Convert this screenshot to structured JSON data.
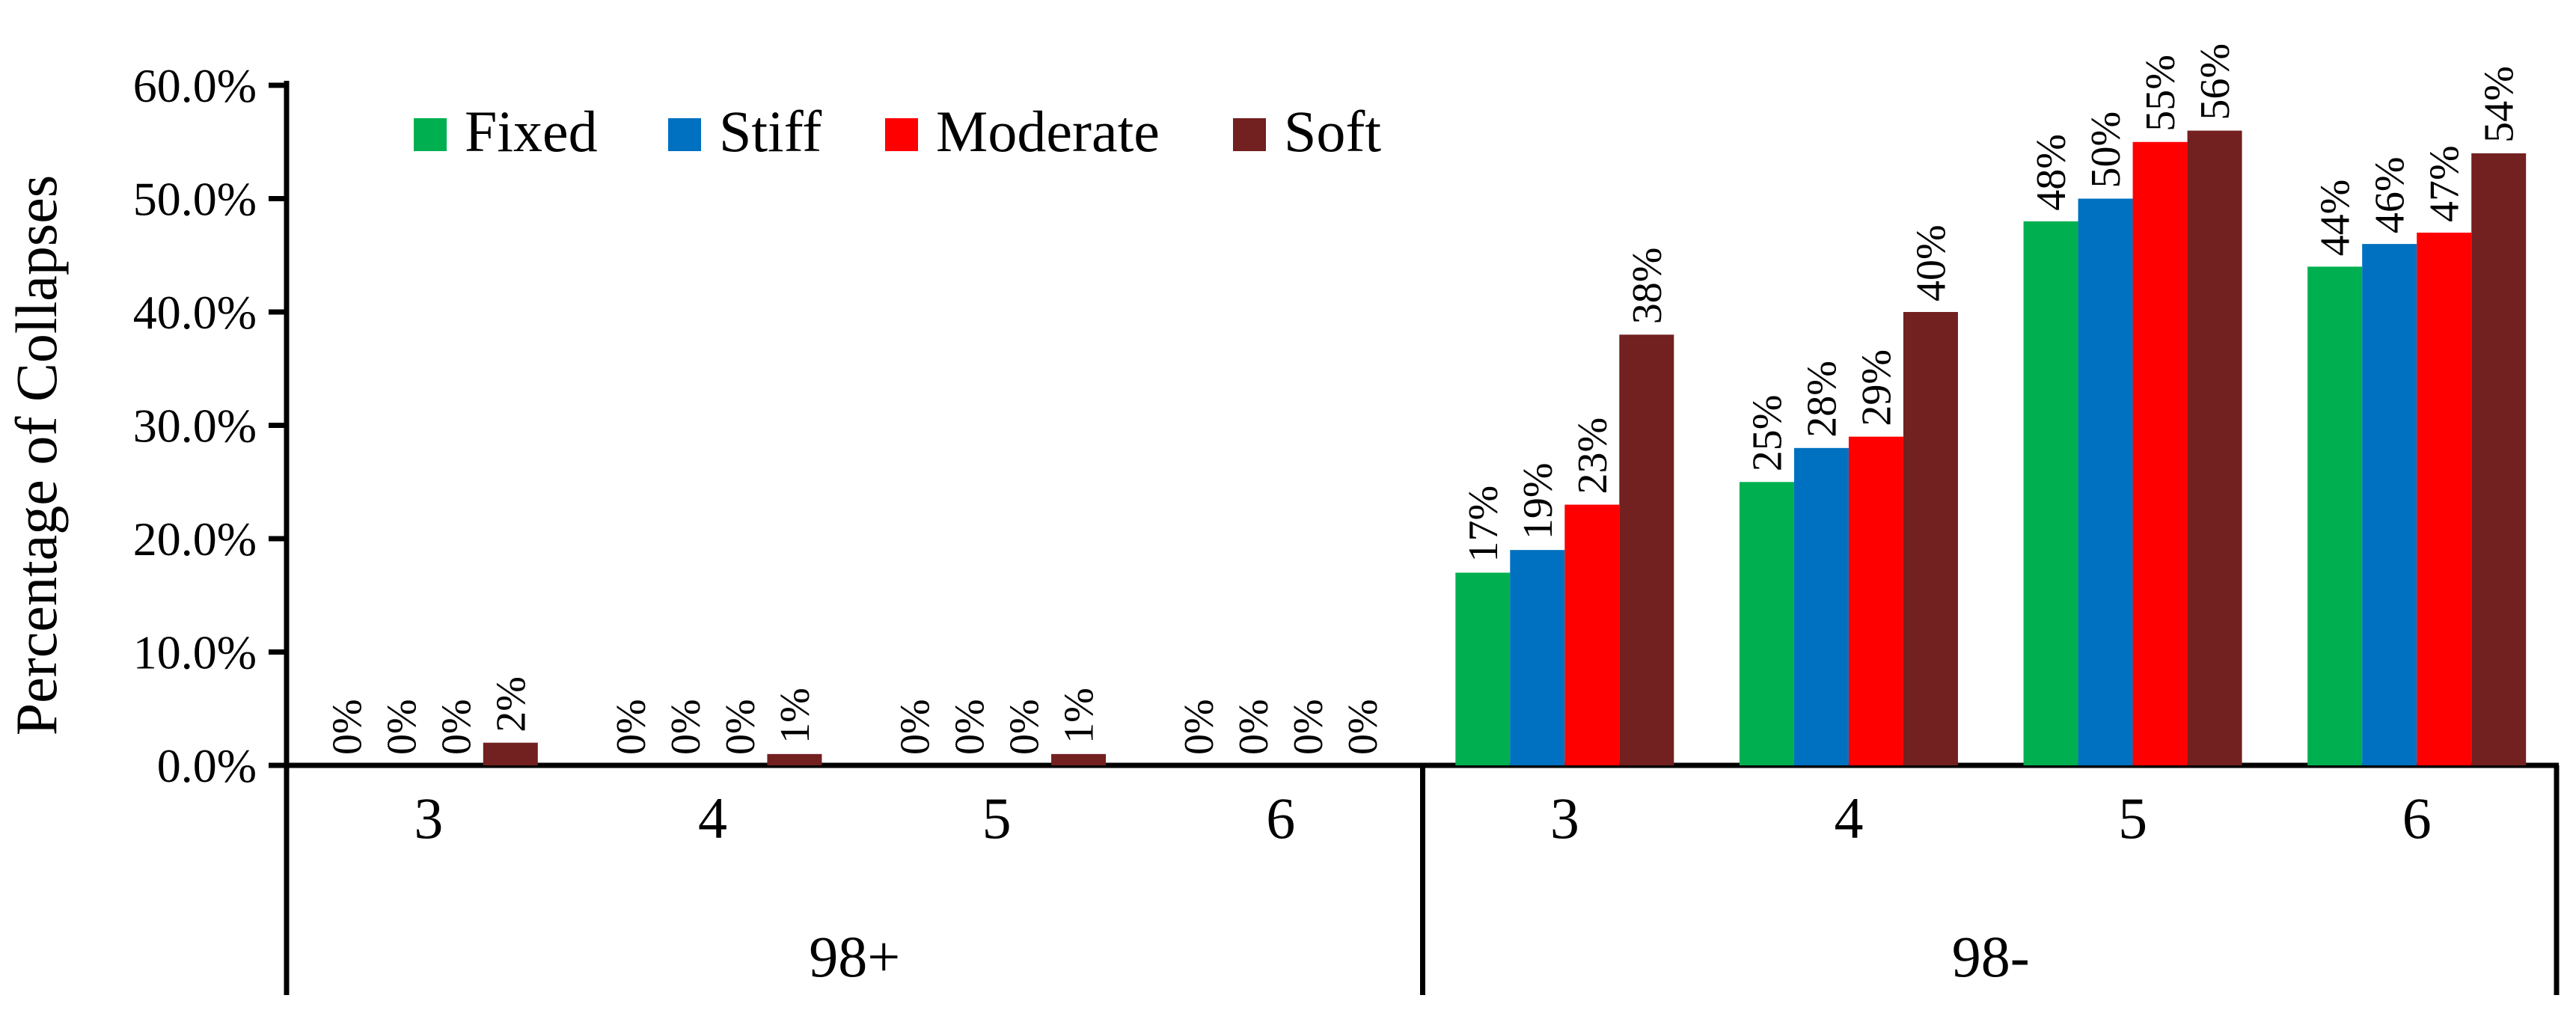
{
  "chart_data": {
    "type": "bar",
    "title": "",
    "xlabel": "",
    "ylabel": "Percentage of Collapses",
    "ylim": [
      0,
      0.6
    ],
    "yticks": [
      0.0,
      0.1,
      0.2,
      0.3,
      0.4,
      0.5,
      0.6
    ],
    "ytick_labels": [
      "0.0%",
      "10.0%",
      "20.0%",
      "30.0%",
      "40.0%",
      "50.0%",
      "60.0%"
    ],
    "grid": false,
    "legend_position": "top-left",
    "groups": [
      {
        "label": "98+",
        "categories": [
          "3",
          "4",
          "5",
          "6"
        ]
      },
      {
        "label": "98-",
        "categories": [
          "3",
          "4",
          "5",
          "6"
        ]
      }
    ],
    "categories": [
      "3",
      "4",
      "5",
      "6",
      "3",
      "4",
      "5",
      "6"
    ],
    "series": [
      {
        "name": "Fixed",
        "color": "#00B050",
        "values": [
          0.0,
          0.0,
          0.0,
          0.0,
          0.17,
          0.25,
          0.48,
          0.44
        ],
        "labels": [
          "0%",
          "0%",
          "0%",
          "0%",
          "17%",
          "25%",
          "48%",
          "44%"
        ]
      },
      {
        "name": "Stiff",
        "color": "#0070C0",
        "values": [
          0.0,
          0.0,
          0.0,
          0.0,
          0.19,
          0.28,
          0.5,
          0.46
        ],
        "labels": [
          "0%",
          "0%",
          "0%",
          "0%",
          "19%",
          "28%",
          "50%",
          "46%"
        ]
      },
      {
        "name": "Moderate",
        "color": "#FF0000",
        "values": [
          0.0,
          0.0,
          0.0,
          0.0,
          0.23,
          0.29,
          0.55,
          0.47
        ],
        "labels": [
          "0%",
          "0%",
          "0%",
          "0%",
          "23%",
          "29%",
          "55%",
          "47%"
        ]
      },
      {
        "name": "Soft",
        "color": "#722020",
        "values": [
          0.02,
          0.01,
          0.01,
          0.0,
          0.38,
          0.4,
          0.56,
          0.54
        ],
        "labels": [
          "2%",
          "1%",
          "1%",
          "0%",
          "38%",
          "40%",
          "56%",
          "54%"
        ]
      }
    ]
  }
}
